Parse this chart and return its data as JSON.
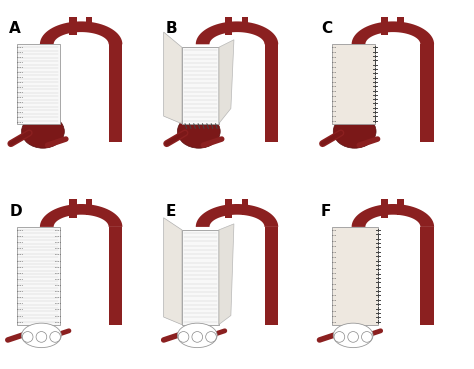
{
  "panels": [
    "A",
    "B",
    "C",
    "D",
    "E",
    "F"
  ],
  "figsize": [
    4.74,
    3.69
  ],
  "dpi": 100,
  "background_color": "#ffffff",
  "label_fontsize": 11,
  "label_fontweight": "bold",
  "label_color": "#000000",
  "aorta_color": "#8B2020",
  "aorta_highlight": "#A83030",
  "aorta_shadow": "#5a1010",
  "graft_white": "#F8F8F8",
  "graft_lines": "#cccccc",
  "graft_light": "#EEE8E0",
  "suture_color": "#444444",
  "aneurysm_color": "#7B1818",
  "bovine_color": "#E0D8C8"
}
